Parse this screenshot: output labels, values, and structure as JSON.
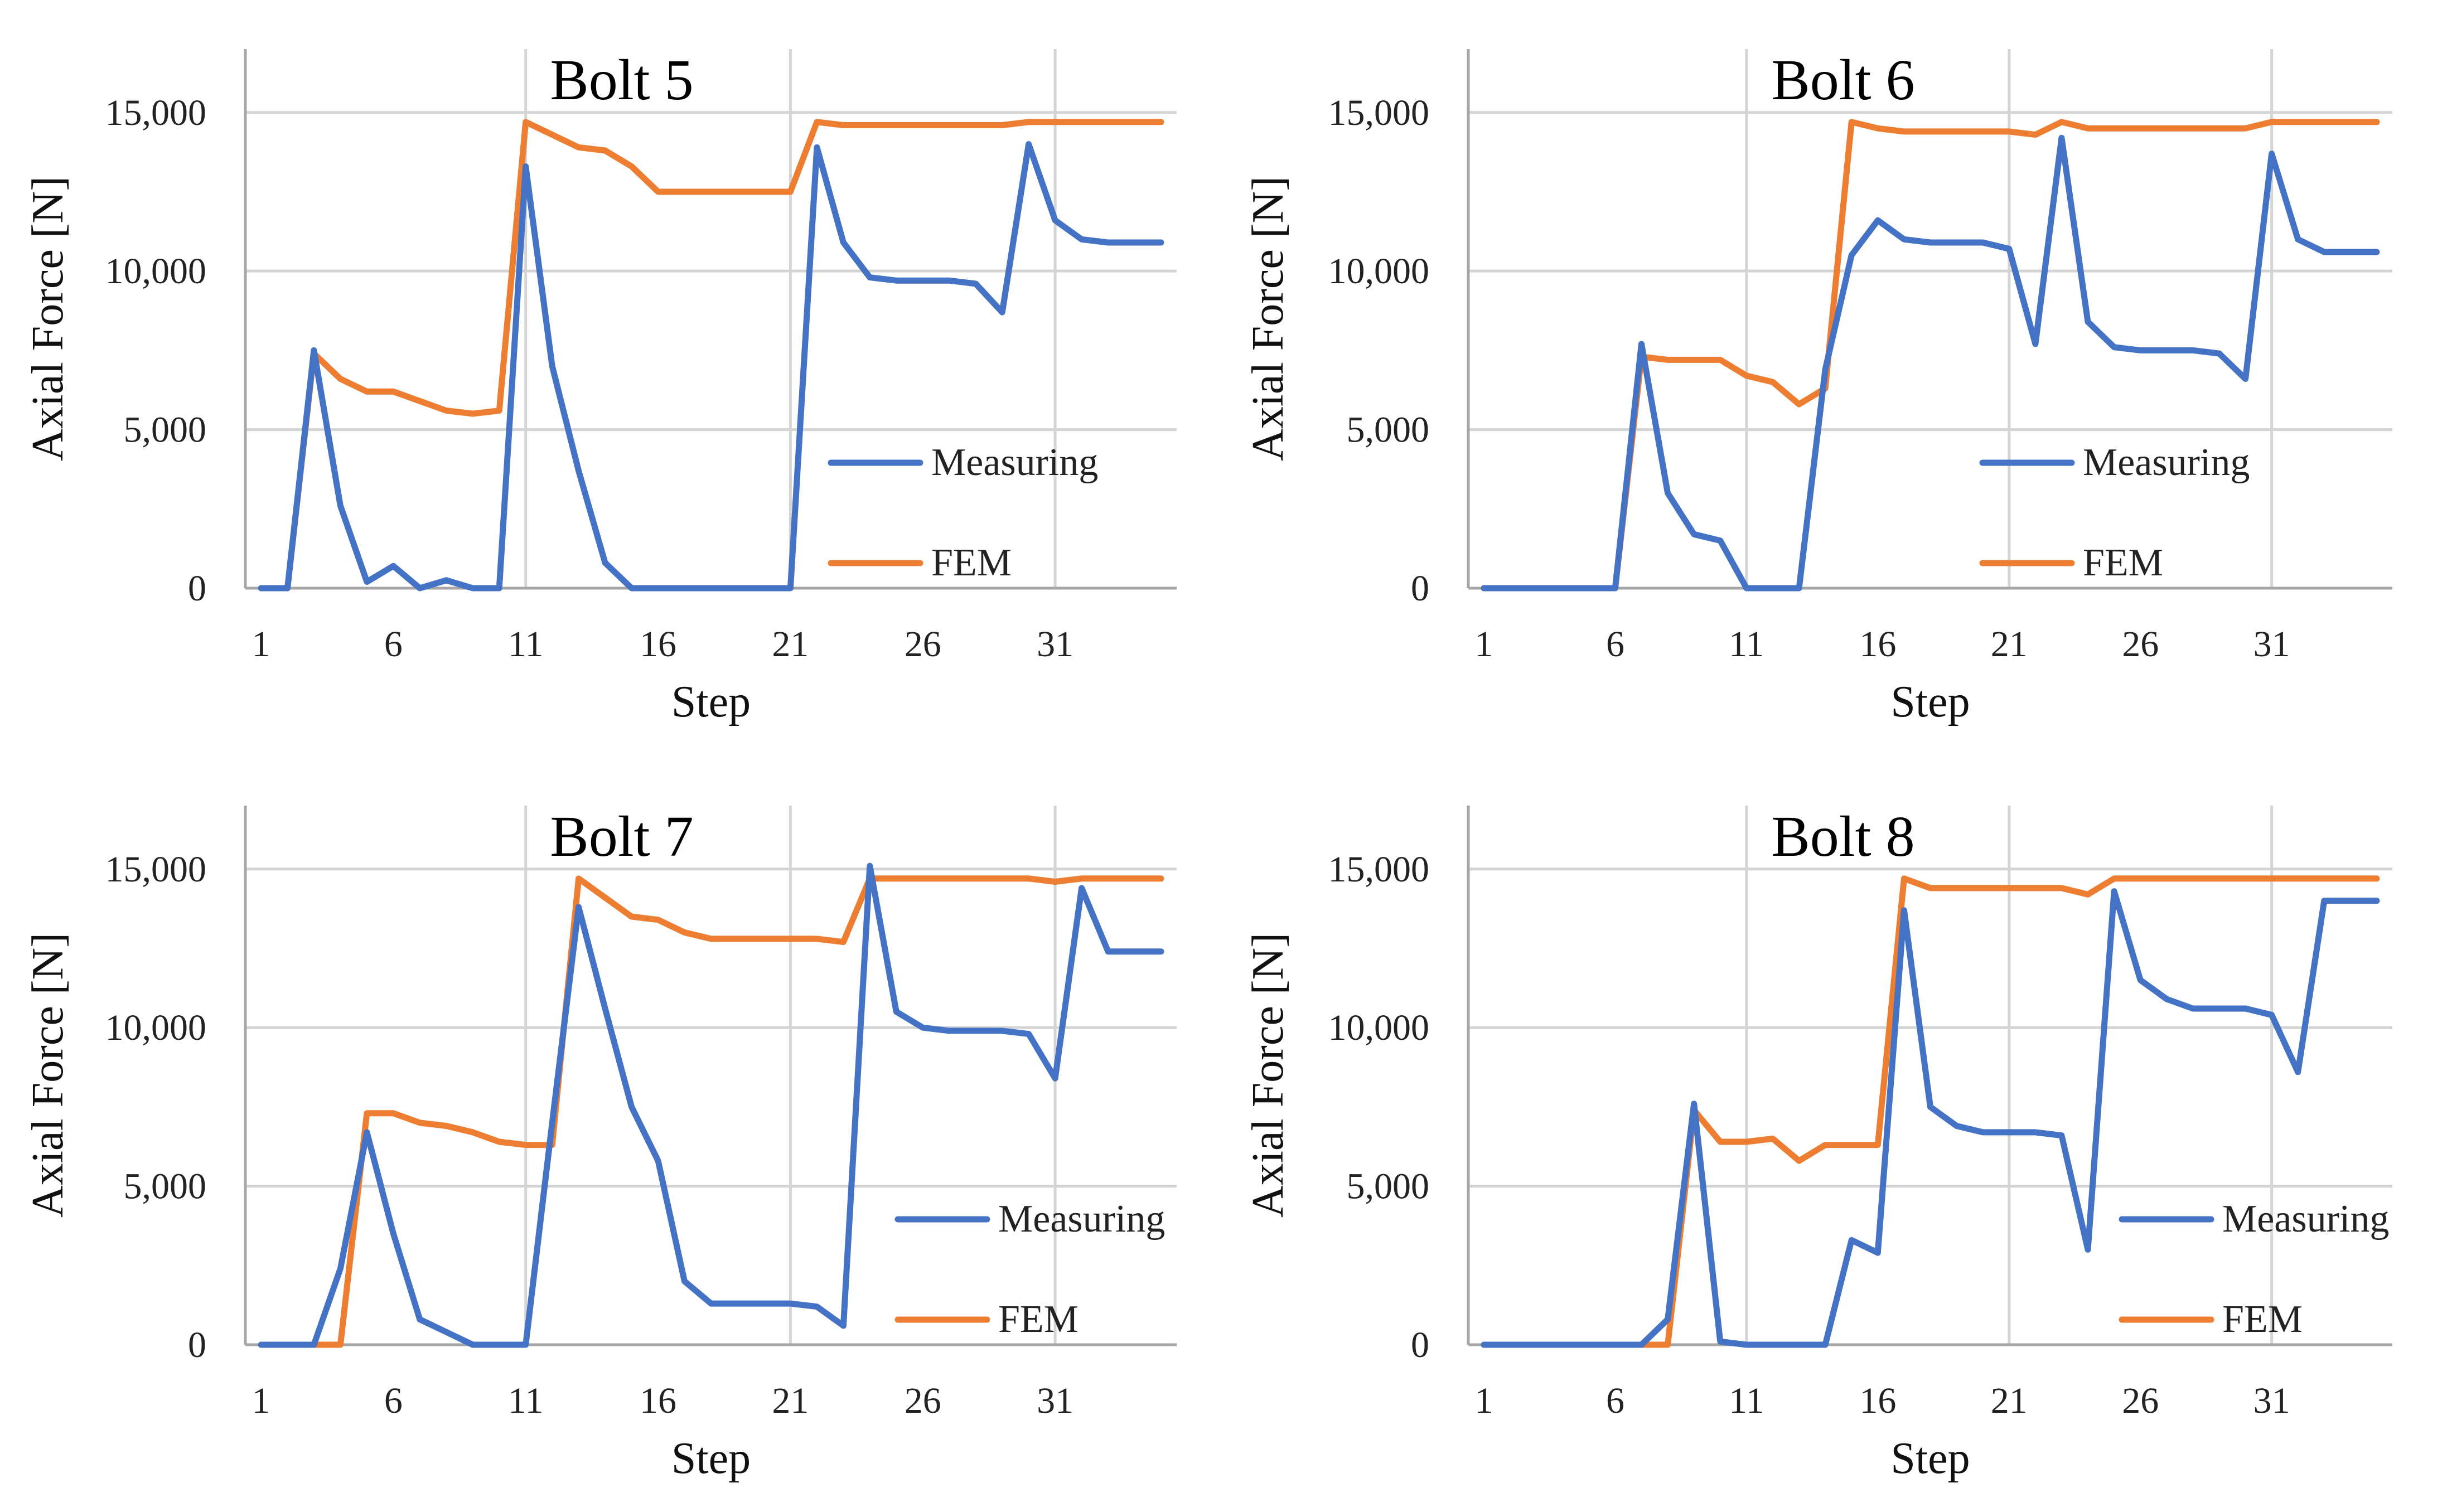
{
  "figure": {
    "x_tick_labels": [
      "1",
      "6",
      "11",
      "16",
      "21",
      "26",
      "31"
    ]
  },
  "colors": {
    "Measuring": "#4472C4",
    "FEM": "#ED7D31"
  },
  "chart_data": [
    {
      "type": "line",
      "title": "Bolt 5",
      "xlabel": "Step",
      "ylabel": "Axial Force [N]",
      "xlim": [
        1,
        35
      ],
      "ylim": [
        0,
        17000
      ],
      "yticks": [
        0,
        5000,
        10000,
        15000
      ],
      "ytick_labels": [
        "0",
        "5,000",
        "10,000",
        "15,000"
      ],
      "legend": "right",
      "x": [
        1,
        2,
        3,
        4,
        5,
        6,
        7,
        8,
        9,
        10,
        11,
        12,
        13,
        14,
        15,
        16,
        17,
        18,
        19,
        20,
        21,
        22,
        23,
        24,
        25,
        26,
        27,
        28,
        29,
        30,
        31,
        32,
        33,
        34,
        35
      ],
      "series": [
        {
          "name": "Measuring",
          "values": [
            0,
            0,
            7500,
            2600,
            200,
            700,
            0,
            250,
            0,
            0,
            13300,
            7000,
            3700,
            800,
            0,
            0,
            0,
            0,
            0,
            0,
            0,
            13900,
            10900,
            9800,
            9700,
            9700,
            9700,
            9600,
            8700,
            14000,
            11600,
            11000,
            10900,
            10900,
            10900
          ]
        },
        {
          "name": "FEM",
          "values": [
            0,
            0,
            7400,
            6600,
            6200,
            6200,
            5900,
            5600,
            5500,
            5600,
            14700,
            14300,
            13900,
            13800,
            13300,
            12500,
            12500,
            12500,
            12500,
            12500,
            12500,
            14700,
            14600,
            14600,
            14600,
            14600,
            14600,
            14600,
            14600,
            14700,
            14700,
            14700,
            14700,
            14700,
            14700
          ]
        }
      ]
    },
    {
      "type": "line",
      "title": "Bolt 6",
      "xlabel": "Step",
      "ylabel": "Axial Force [N]",
      "xlim": [
        1,
        35
      ],
      "ylim": [
        0,
        17000
      ],
      "yticks": [
        0,
        5000,
        10000,
        15000
      ],
      "ytick_labels": [
        "0",
        "5,000",
        "10,000",
        "15,000"
      ],
      "legend": "right",
      "x": [
        1,
        2,
        3,
        4,
        5,
        6,
        7,
        8,
        9,
        10,
        11,
        12,
        13,
        14,
        15,
        16,
        17,
        18,
        19,
        20,
        21,
        22,
        23,
        24,
        25,
        26,
        27,
        28,
        29,
        30,
        31,
        32,
        33,
        34,
        35
      ],
      "series": [
        {
          "name": "Measuring",
          "values": [
            0,
            0,
            0,
            0,
            0,
            0,
            7700,
            3000,
            1700,
            1500,
            0,
            0,
            0,
            6900,
            10500,
            11600,
            11000,
            10900,
            10900,
            10900,
            10700,
            7700,
            14200,
            8400,
            7600,
            7500,
            7500,
            7500,
            7400,
            6600,
            13700,
            11000,
            10600,
            10600,
            10600
          ]
        },
        {
          "name": "FEM",
          "values": [
            0,
            0,
            0,
            0,
            0,
            0,
            7300,
            7200,
            7200,
            7200,
            6700,
            6500,
            5800,
            6300,
            14700,
            14500,
            14400,
            14400,
            14400,
            14400,
            14400,
            14300,
            14700,
            14500,
            14500,
            14500,
            14500,
            14500,
            14500,
            14500,
            14700,
            14700,
            14700,
            14700,
            14700
          ]
        }
      ]
    },
    {
      "type": "line",
      "title": "Bolt 7",
      "xlabel": "Step",
      "ylabel": "Axial Force [N]",
      "xlim": [
        1,
        35
      ],
      "ylim": [
        0,
        17000
      ],
      "yticks": [
        0,
        5000,
        10000,
        15000
      ],
      "ytick_labels": [
        "0",
        "5,000",
        "10,000",
        "15,000"
      ],
      "legend": "right",
      "x": [
        1,
        2,
        3,
        4,
        5,
        6,
        7,
        8,
        9,
        10,
        11,
        12,
        13,
        14,
        15,
        16,
        17,
        18,
        19,
        20,
        21,
        22,
        23,
        24,
        25,
        26,
        27,
        28,
        29,
        30,
        31,
        32,
        33,
        34,
        35
      ],
      "series": [
        {
          "name": "Measuring",
          "values": [
            0,
            0,
            0,
            2400,
            6700,
            3500,
            800,
            400,
            0,
            0,
            0,
            7000,
            13800,
            10600,
            7500,
            5800,
            2000,
            1300,
            1300,
            1300,
            1300,
            1200,
            600,
            15100,
            10500,
            10000,
            9900,
            9900,
            9900,
            9800,
            8400,
            14400,
            12400,
            12400,
            12400
          ]
        },
        {
          "name": "FEM",
          "values": [
            0,
            0,
            0,
            0,
            7300,
            7300,
            7000,
            6900,
            6700,
            6400,
            6300,
            6300,
            14700,
            14100,
            13500,
            13400,
            13000,
            12800,
            12800,
            12800,
            12800,
            12800,
            12700,
            14700,
            14700,
            14700,
            14700,
            14700,
            14700,
            14700,
            14600,
            14700,
            14700,
            14700,
            14700
          ]
        }
      ]
    },
    {
      "type": "line",
      "title": "Bolt 8",
      "xlabel": "Step",
      "ylabel": "Axial Force [N]",
      "xlim": [
        1,
        35
      ],
      "ylim": [
        0,
        17000
      ],
      "yticks": [
        0,
        5000,
        10000,
        15000
      ],
      "ytick_labels": [
        "0",
        "5,000",
        "10,000",
        "15,000"
      ],
      "legend": "right",
      "x": [
        1,
        2,
        3,
        4,
        5,
        6,
        7,
        8,
        9,
        10,
        11,
        12,
        13,
        14,
        15,
        16,
        17,
        18,
        19,
        20,
        21,
        22,
        23,
        24,
        25,
        26,
        27,
        28,
        29,
        30,
        31,
        32,
        33,
        34,
        35
      ],
      "series": [
        {
          "name": "Measuring",
          "values": [
            0,
            0,
            0,
            0,
            0,
            0,
            0,
            800,
            7600,
            100,
            0,
            0,
            0,
            0,
            3300,
            2900,
            13700,
            7500,
            6900,
            6700,
            6700,
            6700,
            6600,
            3000,
            14300,
            11500,
            10900,
            10600,
            10600,
            10600,
            10400,
            8600,
            14000,
            14000,
            14000
          ]
        },
        {
          "name": "FEM",
          "values": [
            0,
            0,
            0,
            0,
            0,
            0,
            0,
            0,
            7400,
            6400,
            6400,
            6500,
            5800,
            6300,
            6300,
            6300,
            14700,
            14400,
            14400,
            14400,
            14400,
            14400,
            14400,
            14200,
            14700,
            14700,
            14700,
            14700,
            14700,
            14700,
            14700,
            14700,
            14700,
            14700,
            14700
          ]
        }
      ]
    }
  ]
}
